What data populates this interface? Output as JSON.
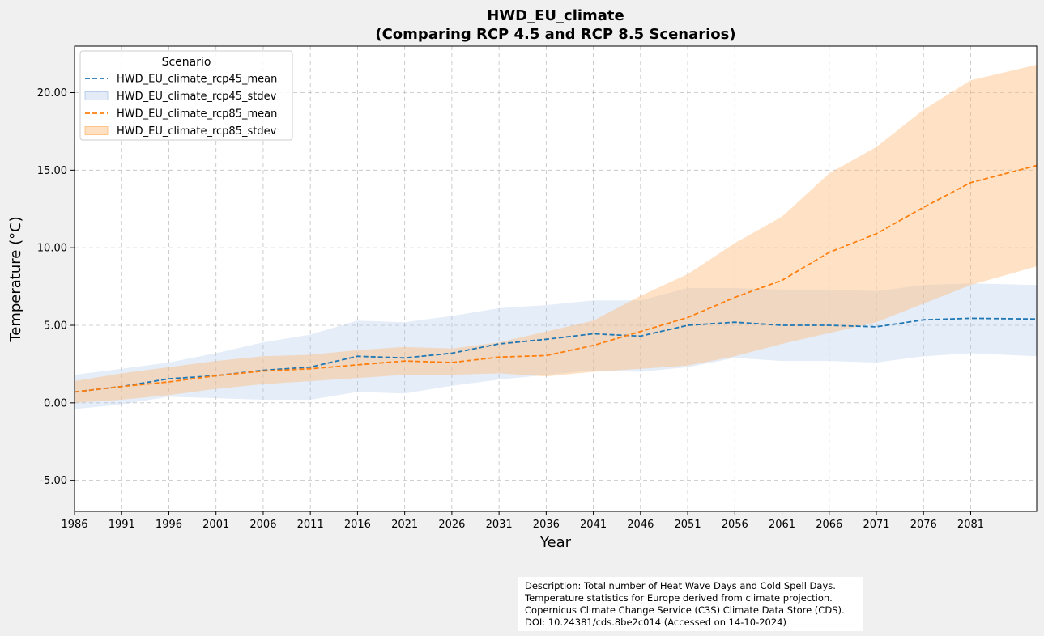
{
  "chart_data": {
    "type": "line",
    "title": "HWD_EU_climate",
    "subtitle": "(Comparing RCP 4.5 and RCP 8.5 Scenarios)",
    "xlabel": "Year",
    "ylabel": "Temperature (°C)",
    "xlim": [
      1986,
      2088
    ],
    "ylim": [
      -7,
      23
    ],
    "x_ticks": [
      1986,
      1991,
      1996,
      2001,
      2006,
      2011,
      2016,
      2021,
      2026,
      2031,
      2036,
      2041,
      2046,
      2051,
      2056,
      2061,
      2066,
      2071,
      2076,
      2081
    ],
    "y_ticks": [
      -5,
      0,
      5,
      10,
      15,
      20
    ],
    "y_tick_labels": [
      "-5.00",
      "0.00",
      "5.00",
      "10.00",
      "15.00",
      "20.00"
    ],
    "grid": true,
    "legend_title": "Scenario",
    "legend_position": "upper-left",
    "colors": {
      "rcp45": "#1f77b4",
      "rcp85": "#ff7f0e",
      "rcp45_fill": "#aec7e8",
      "rcp85_fill": "#ffbb78"
    },
    "x": [
      1986,
      1991,
      1996,
      2001,
      2006,
      2011,
      2016,
      2021,
      2026,
      2031,
      2036,
      2041,
      2046,
      2051,
      2056,
      2061,
      2066,
      2071,
      2076,
      2081,
      2088
    ],
    "series": [
      {
        "name": "HWD_EU_climate_rcp45_mean",
        "kind": "line",
        "values": [
          0.7,
          1.05,
          1.55,
          1.75,
          2.1,
          2.3,
          3.0,
          2.9,
          3.2,
          3.8,
          4.1,
          4.45,
          4.3,
          5.0,
          5.2,
          5.0,
          5.0,
          4.9,
          5.35,
          5.45,
          5.4
        ]
      },
      {
        "name": "HWD_EU_climate_rcp45_stdev",
        "kind": "band",
        "lower": [
          -0.4,
          -0.1,
          0.4,
          0.3,
          0.2,
          0.2,
          0.7,
          0.6,
          1.1,
          1.5,
          1.8,
          2.1,
          2.0,
          2.3,
          2.9,
          2.7,
          2.7,
          2.6,
          3.0,
          3.2,
          3.0
        ],
        "upper": [
          1.8,
          2.2,
          2.6,
          3.2,
          3.9,
          4.4,
          5.3,
          5.2,
          5.6,
          6.1,
          6.3,
          6.6,
          6.6,
          7.4,
          7.4,
          7.3,
          7.3,
          7.2,
          7.6,
          7.7,
          7.6
        ]
      },
      {
        "name": "HWD_EU_climate_rcp85_mean",
        "kind": "line",
        "values": [
          0.7,
          1.05,
          1.35,
          1.75,
          2.05,
          2.2,
          2.45,
          2.7,
          2.6,
          2.95,
          3.05,
          3.7,
          4.6,
          5.5,
          6.8,
          7.9,
          9.7,
          10.9,
          12.6,
          14.2,
          15.3
        ]
      },
      {
        "name": "HWD_EU_climate_rcp85_stdev",
        "kind": "band",
        "lower": [
          0.0,
          0.2,
          0.5,
          0.9,
          1.2,
          1.4,
          1.6,
          1.8,
          1.8,
          1.9,
          1.7,
          2.0,
          2.2,
          2.4,
          3.0,
          3.8,
          4.5,
          5.2,
          6.4,
          7.6,
          8.8
        ],
        "upper": [
          1.4,
          1.9,
          2.3,
          2.7,
          3.0,
          3.1,
          3.4,
          3.6,
          3.5,
          3.9,
          4.6,
          5.3,
          6.9,
          8.3,
          10.3,
          12.0,
          14.8,
          16.5,
          18.9,
          20.8,
          21.8
        ]
      }
    ]
  },
  "description": {
    "line1": "Description: Total number of Heat Wave Days and Cold Spell Days.",
    "line2": "Temperature statistics for Europe derived from climate projection.",
    "line3": "Copernicus Climate Change Service (C3S) Climate Data Store (CDS).",
    "line4": "DOI: 10.24381/cds.8be2c014 (Accessed on 14-10-2024)"
  }
}
